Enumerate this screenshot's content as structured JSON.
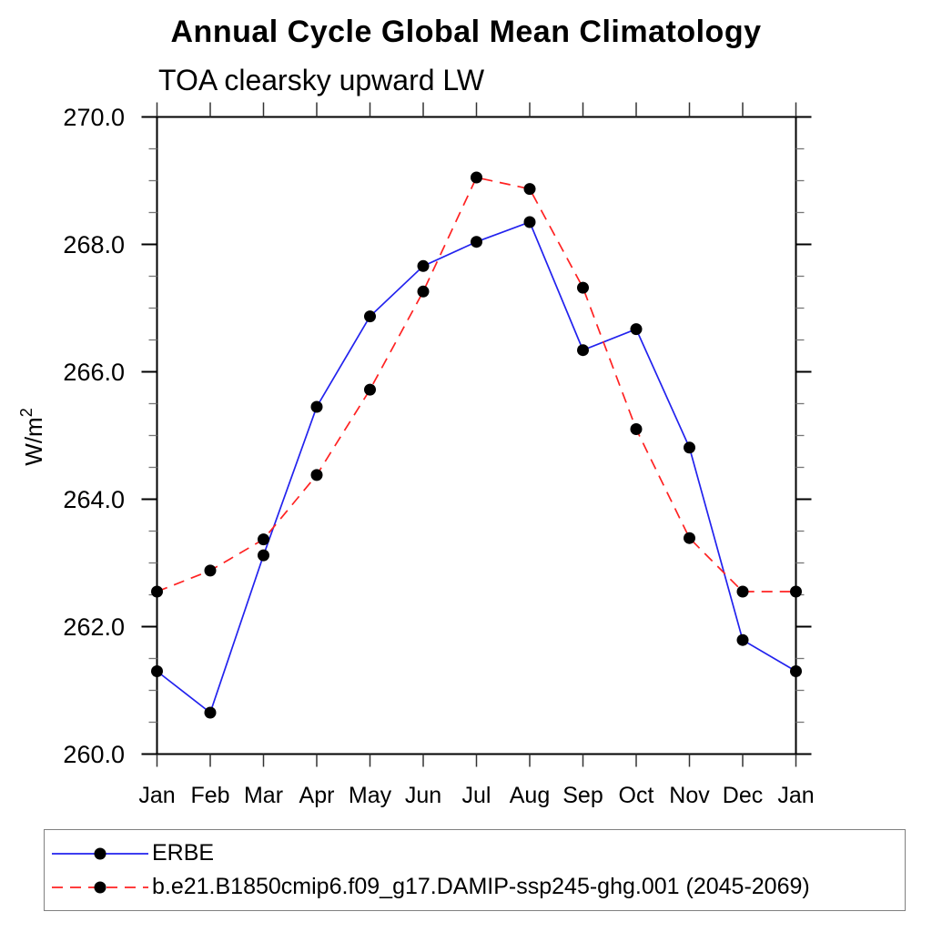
{
  "title": "Annual Cycle Global Mean Climatology",
  "subtitle": "TOA clearsky upward LW",
  "chart_data": {
    "type": "line",
    "categories": [
      "Jan",
      "Feb",
      "Mar",
      "Apr",
      "May",
      "Jun",
      "Jul",
      "Aug",
      "Sep",
      "Oct",
      "Nov",
      "Dec",
      "Jan"
    ],
    "xlabel": "",
    "ylabel": "W/m²",
    "ylabel_base": "W/m",
    "ylabel_sup": "2",
    "ylim": [
      260.0,
      270.0
    ],
    "ytick_major_interval": 2.0,
    "ytick_minor_interval": 0.5,
    "ytick_labels": [
      "260.0",
      "262.0",
      "264.0",
      "266.0",
      "268.0",
      "270.0"
    ],
    "grid": "off",
    "legend_position": "bottom-left-box",
    "marker": "filled-black-circle",
    "series": [
      {
        "name": "ERBE",
        "color": "#2222ee",
        "style": "solid",
        "values": [
          261.3,
          260.65,
          263.12,
          265.45,
          266.87,
          267.66,
          268.04,
          268.35,
          266.34,
          266.67,
          264.81,
          261.79,
          261.3
        ]
      },
      {
        "name": "b.e21.B1850cmip6.f09_g17.DAMIP-ssp245-ghg.001 (2045-2069)",
        "color": "#ff2222",
        "style": "dashed",
        "values": [
          262.55,
          262.88,
          263.37,
          264.38,
          265.72,
          267.26,
          269.05,
          268.87,
          267.32,
          265.1,
          263.39,
          262.55,
          262.55
        ]
      }
    ]
  }
}
